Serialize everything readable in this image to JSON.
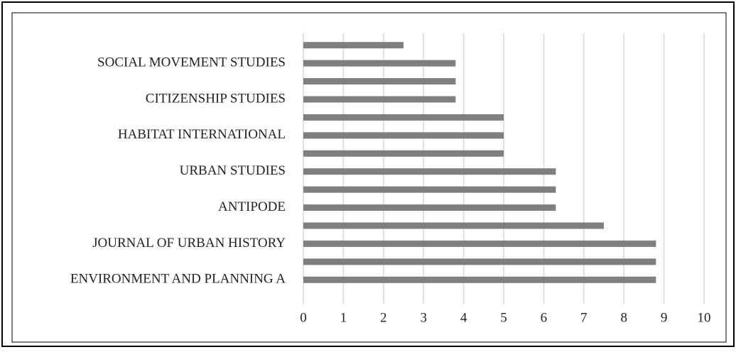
{
  "chart_data": {
    "type": "bar",
    "orientation": "horizontal",
    "categories": [
      null,
      "SOCIAL MOVEMENT STUDIES",
      null,
      "CITIZENSHIP STUDIES",
      null,
      "HABITAT INTERNATIONAL",
      null,
      "URBAN STUDIES",
      null,
      "ANTIPODE",
      null,
      "JOURNAL OF URBAN HISTORY",
      null,
      "ENVIRONMENT AND PLANNING A"
    ],
    "values": [
      2.5,
      3.8,
      3.8,
      3.8,
      5,
      5,
      5,
      6.3,
      6.3,
      6.3,
      7.5,
      8.8,
      8.8,
      8.8
    ],
    "color": "#7f7f7f",
    "xlim": [
      0,
      10
    ],
    "xticks": [
      0,
      1,
      2,
      3,
      4,
      5,
      6,
      7,
      8,
      9,
      10
    ],
    "grid": true
  }
}
